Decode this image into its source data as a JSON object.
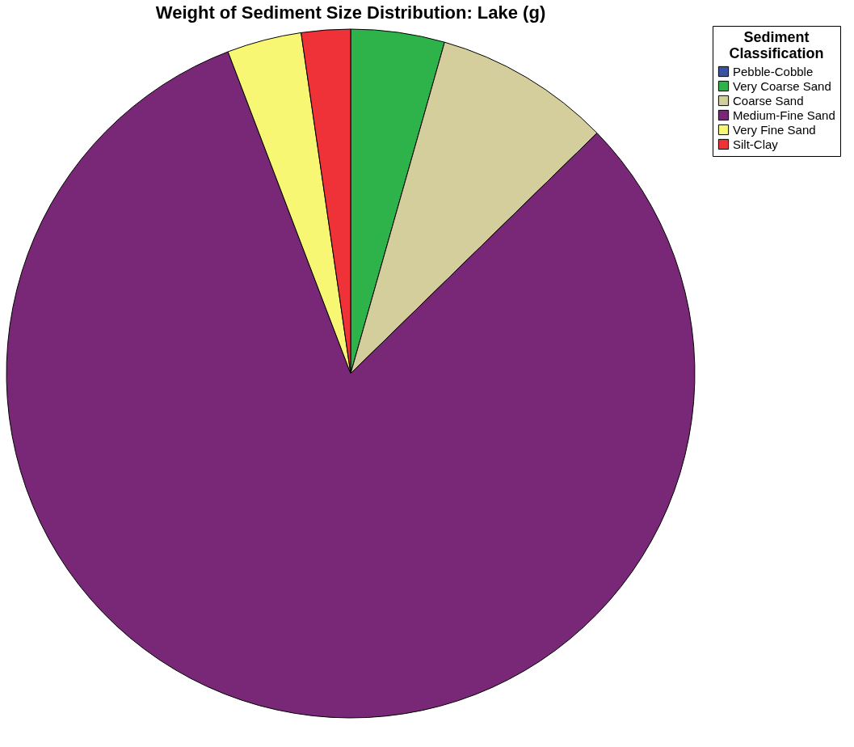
{
  "chart_data": {
    "type": "pie",
    "title": "Weight of Sediment Size Distribution: Lake (g)",
    "legend_title": "Sediment Classification",
    "legend": "top right",
    "categories": [
      "Pebble-Cobble",
      "Very Coarse Sand",
      "Coarse Sand",
      "Medium-Fine Sand",
      "Very Fine Sand",
      "Silt-Clay"
    ],
    "values": [
      0,
      4.4,
      8.3,
      81.5,
      3.5,
      2.3
    ],
    "colors": [
      "#3953a4",
      "#2db34a",
      "#d3ce9b",
      "#792877",
      "#f8f774",
      "#ee3237"
    ]
  }
}
